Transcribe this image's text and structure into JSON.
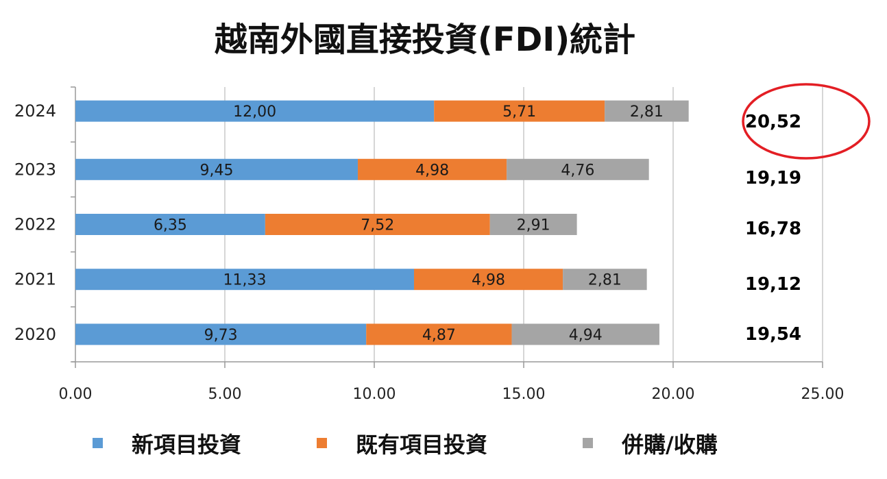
{
  "chart_data": {
    "type": "bar",
    "orientation": "horizontal",
    "stacked": true,
    "title": "越南外國直接投資(FDI)統計",
    "categories": [
      "2024",
      "2023",
      "2022",
      "2021",
      "2020"
    ],
    "series": [
      {
        "name": "新項目投資",
        "color": "#5B9BD5",
        "values": [
          12.0,
          9.45,
          6.35,
          11.33,
          9.73
        ],
        "labels": [
          "12,00",
          "9,45",
          "6,35",
          "11,33",
          "9,73"
        ]
      },
      {
        "name": "既有項目投資",
        "color": "#ED7D31",
        "values": [
          5.71,
          4.98,
          7.52,
          4.98,
          4.87
        ],
        "labels": [
          "5,71",
          "4,98",
          "7,52",
          "4,98",
          "4,87"
        ]
      },
      {
        "name": "併購/收購",
        "color": "#A5A5A5",
        "values": [
          2.81,
          4.76,
          2.91,
          2.81,
          4.94
        ],
        "labels": [
          "2,81",
          "4,76",
          "2,91",
          "2,81",
          "4,94"
        ]
      }
    ],
    "totals": [
      "20,52",
      "19,19",
      "16,78",
      "19,12",
      "19,54"
    ],
    "highlighted_total": "20,52",
    "highlight_color": "#E31E24",
    "xlim": [
      0,
      25
    ],
    "xticks": [
      0,
      5,
      10,
      15,
      20,
      25
    ],
    "xtick_labels": [
      "0.00",
      "5.00",
      "10.00",
      "15.00",
      "20.00",
      "25.00"
    ],
    "grid": "vertical",
    "legend_position": "bottom"
  }
}
